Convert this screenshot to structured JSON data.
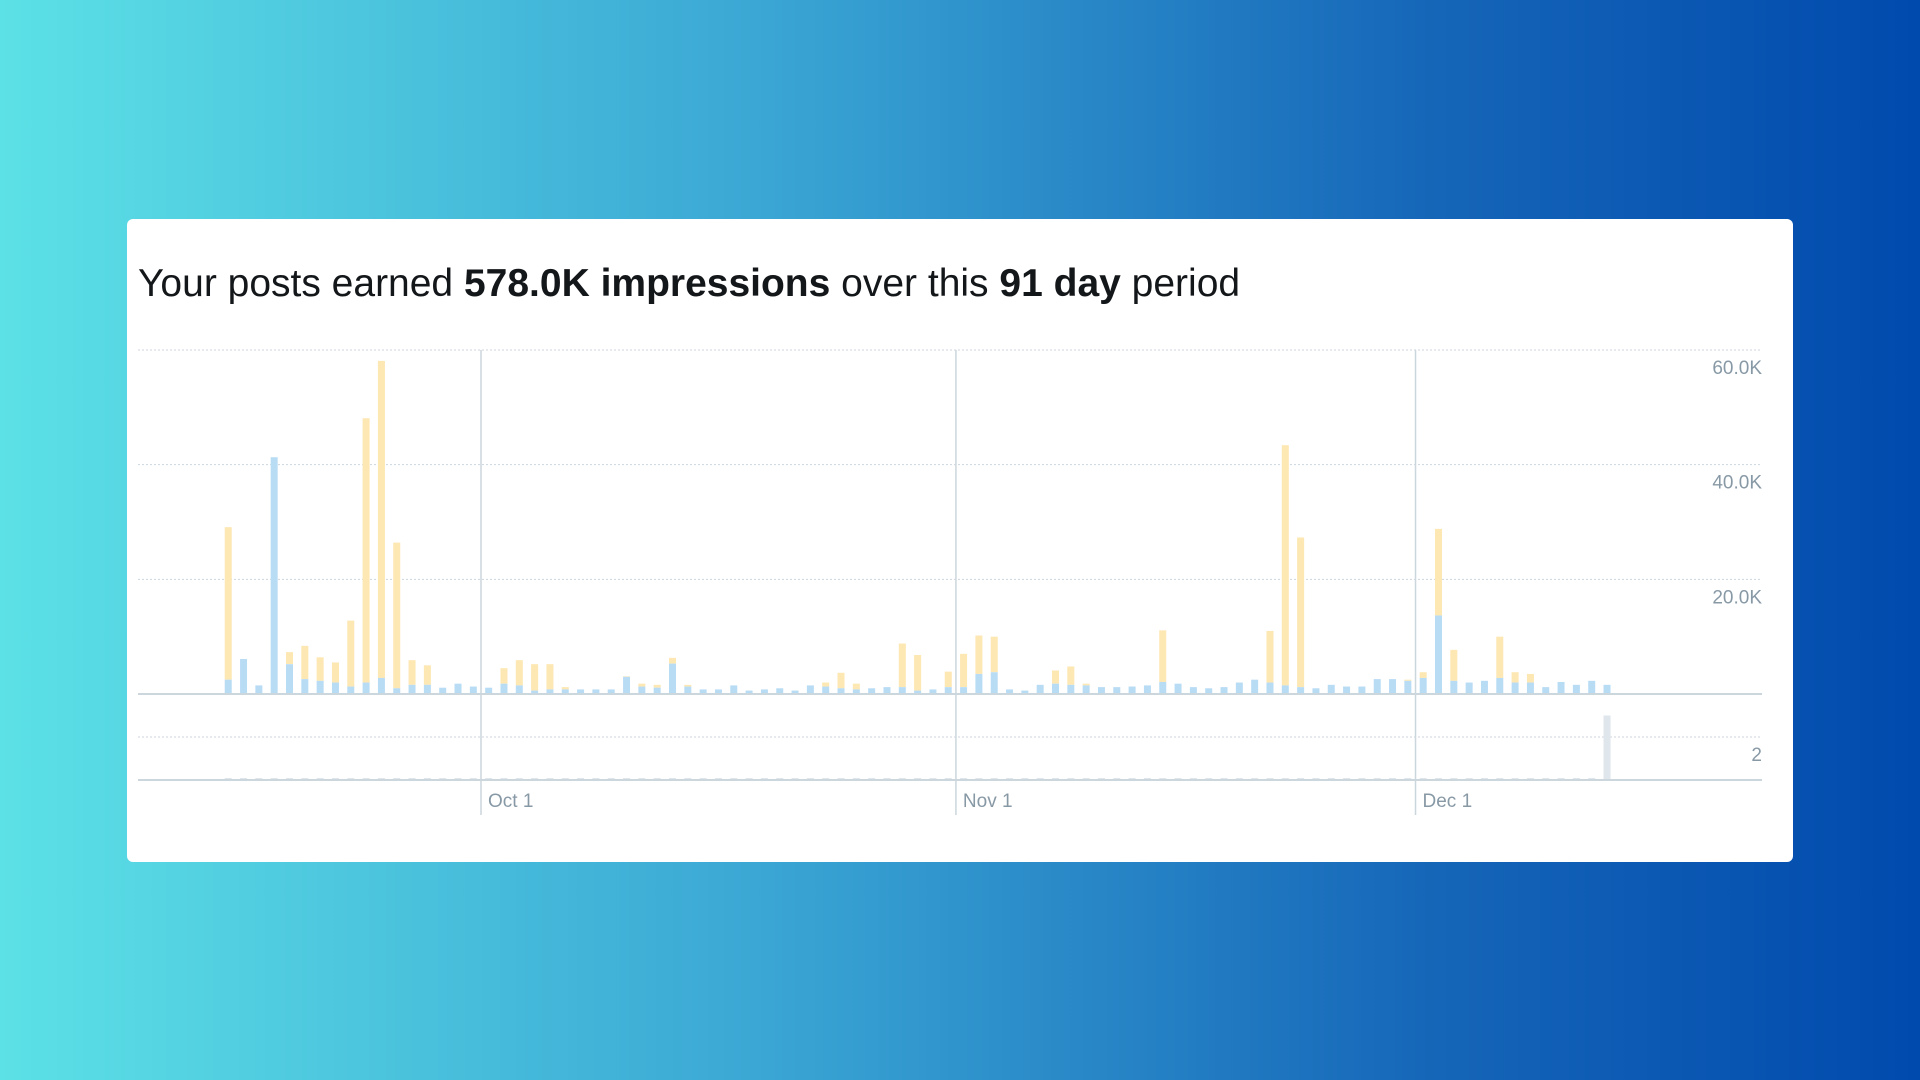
{
  "header": {
    "prefix": "Your posts earned ",
    "impressions": "578.0K impressions",
    "middle": " over this ",
    "days": "91 day",
    "suffix": " period"
  },
  "colors": {
    "organic": "#b9dcf5",
    "promoted": "#fde7b2",
    "secondary": "#dfe6ec",
    "grid": "#ccd6dd"
  },
  "chart_data": [
    {
      "type": "bar",
      "stacked": true,
      "y_ticks": [
        "20.0K",
        "40.0K",
        "60.0K"
      ],
      "ylim": [
        0,
        60000
      ],
      "x_ticks": [
        "Oct 1",
        "Nov 1",
        "Dec 1"
      ],
      "x_range": [
        "Sep 14",
        "Dec 13"
      ],
      "grid": true,
      "bottom_values": [
        2500,
        6100,
        1500,
        41300,
        5200,
        2600,
        2300,
        2000,
        1300,
        2000,
        2800,
        1000,
        1600,
        1600,
        1100,
        1800,
        1300,
        1100,
        1800,
        1500,
        600,
        800,
        800,
        800,
        800,
        800,
        3000,
        1300,
        1100,
        5300,
        1300,
        800,
        800,
        1500,
        600,
        800,
        1000,
        600,
        1500,
        1300,
        1000,
        800,
        1000,
        1200,
        1200,
        600,
        800,
        1200,
        1200,
        3500,
        3800,
        800,
        600,
        1600,
        1800,
        1600,
        1500,
        1200,
        1200,
        1300,
        1500,
        2100,
        1800,
        1200,
        1000,
        1200,
        2000,
        2500,
        2000,
        1500,
        1200,
        1000,
        1600,
        1300,
        1300,
        2600,
        2600,
        2300,
        2800,
        13700,
        2300,
        2000,
        2300,
        2800,
        2000,
        2000,
        1200,
        2100,
        1600,
        2300,
        1600
      ],
      "total_values": [
        29100,
        6100,
        1500,
        41300,
        7300,
        8400,
        6400,
        5500,
        12800,
        48100,
        58100,
        26400,
        5900,
        5000,
        1100,
        1800,
        1300,
        1100,
        4500,
        5900,
        5200,
        5200,
        1200,
        800,
        800,
        800,
        3100,
        1800,
        1600,
        6300,
        1600,
        800,
        800,
        1500,
        600,
        800,
        1000,
        600,
        1500,
        2000,
        3700,
        1800,
        1000,
        1200,
        8800,
        6800,
        800,
        3900,
        7000,
        10200,
        10000,
        800,
        600,
        1600,
        4100,
        4800,
        1800,
        1200,
        1200,
        1300,
        1500,
        11100,
        1800,
        1200,
        1000,
        1200,
        2000,
        2500,
        11000,
        43400,
        27300,
        1000,
        1600,
        1300,
        1300,
        2600,
        2600,
        2500,
        3800,
        28800,
        7700,
        2000,
        2300,
        10000,
        3800,
        3500,
        1200,
        2100,
        1600,
        2300,
        1600
      ]
    },
    {
      "type": "bar",
      "y_ticks": [
        "2"
      ],
      "ylim": [
        0,
        4
      ],
      "values": [
        0,
        0,
        0,
        0,
        0,
        0,
        0,
        0,
        0,
        0,
        0,
        0,
        0,
        0,
        0,
        0,
        0,
        0,
        0,
        0,
        0,
        0,
        0,
        0,
        0,
        0,
        0,
        0,
        0,
        0,
        0,
        0,
        0,
        0,
        0,
        0,
        0,
        0,
        0,
        0,
        0,
        0,
        0,
        0,
        0,
        0,
        0,
        0,
        0,
        0,
        0,
        0,
        0,
        0,
        0,
        0,
        0,
        0,
        0,
        0,
        0,
        0,
        0,
        0,
        0,
        0,
        0,
        0,
        0,
        0,
        0,
        0,
        0,
        0,
        0,
        0,
        0,
        0,
        0,
        0,
        0,
        0,
        0,
        0,
        0,
        0,
        0,
        0,
        0,
        0,
        3
      ]
    }
  ]
}
